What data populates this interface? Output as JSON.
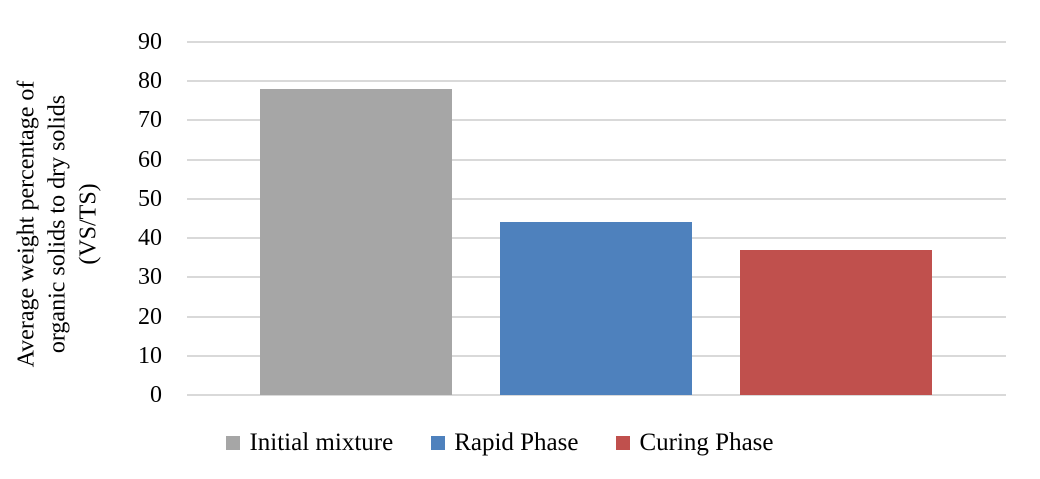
{
  "chart_data": {
    "type": "bar",
    "title": "",
    "xlabel": "",
    "ylabel": "Average weight percentage of\norganic solids to dry solids\n(VS/TS)",
    "categories": [
      "Initial mixture",
      "Rapid Phase",
      "Curing Phase"
    ],
    "values": [
      78,
      44,
      37
    ],
    "colors": [
      "#a6a6a6",
      "#4e81bd",
      "#c0504d"
    ],
    "ylim": [
      0,
      90
    ],
    "ytick_step": 10,
    "yticks": [
      90,
      80,
      70,
      60,
      50,
      40,
      30,
      20,
      10,
      0
    ],
    "grid": true,
    "gridline_color": "#d9d9d9",
    "legend_position": "bottom",
    "legend": [
      {
        "label": "Initial mixture",
        "color": "#a6a6a6"
      },
      {
        "label": "Rapid Phase",
        "color": "#4e81bd"
      },
      {
        "label": "Curing Phase",
        "color": "#c0504d"
      }
    ]
  }
}
